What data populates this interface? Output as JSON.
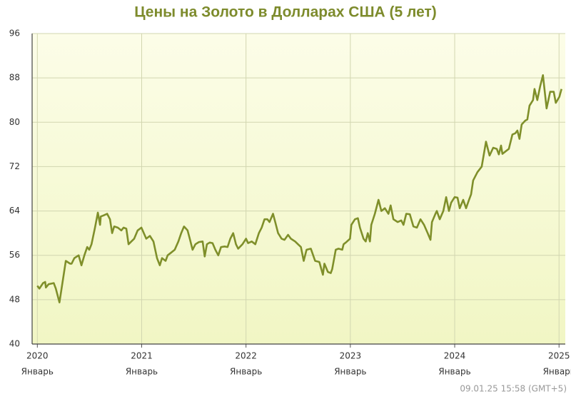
{
  "chart_data": {
    "type": "line",
    "title": "Цены на Золото в Долларах США (5 лет)",
    "footer": "09.01.25 15:58 (GMT+5)",
    "xtick_month": "Январь",
    "color": "#7f8f2a",
    "grid": true,
    "xlim": [
      2019.95,
      2025.06
    ],
    "xticks": [
      2020,
      2021,
      2022,
      2023,
      2024,
      2025
    ],
    "ylim": [
      40,
      96
    ],
    "yticks": [
      40,
      48,
      56,
      64,
      72,
      80,
      88,
      96
    ],
    "x": [
      2020.0,
      2020.02,
      2020.055,
      2020.075,
      2020.082,
      2020.109,
      2020.157,
      2020.177,
      2020.212,
      2020.273,
      2020.314,
      2020.328,
      2020.355,
      2020.396,
      2020.423,
      2020.451,
      2020.478,
      2020.498,
      2020.519,
      2020.553,
      2020.58,
      2020.601,
      2020.608,
      2020.635,
      2020.669,
      2020.696,
      2020.717,
      2020.737,
      2020.771,
      2020.805,
      2020.826,
      2020.853,
      2020.874,
      2020.901,
      2020.928,
      2020.962,
      2020.997,
      2021.044,
      2021.079,
      2021.113,
      2021.147,
      2021.174,
      2021.195,
      2021.229,
      2021.249,
      2021.283,
      2021.317,
      2021.352,
      2021.379,
      2021.406,
      2021.44,
      2021.461,
      2021.488,
      2021.515,
      2021.549,
      2021.584,
      2021.604,
      2021.625,
      2021.652,
      2021.679,
      2021.706,
      2021.734,
      2021.761,
      2021.795,
      2021.823,
      2021.85,
      2021.877,
      2021.904,
      2021.925,
      2021.966,
      2022.0,
      2022.02,
      2022.055,
      2022.089,
      2022.123,
      2022.15,
      2022.177,
      2022.205,
      2022.225,
      2022.259,
      2022.28,
      2022.307,
      2022.341,
      2022.369,
      2022.403,
      2022.43,
      2022.471,
      2022.498,
      2022.526,
      2022.553,
      2022.58,
      2022.621,
      2022.662,
      2022.703,
      2022.737,
      2022.751,
      2022.785,
      2022.812,
      2022.826,
      2022.86,
      2022.887,
      2022.922,
      2022.935,
      2022.962,
      2022.997,
      2023.01,
      2023.044,
      2023.072,
      2023.092,
      2023.126,
      2023.147,
      2023.167,
      2023.188,
      2023.201,
      2023.235,
      2023.27,
      2023.297,
      2023.331,
      2023.365,
      2023.386,
      2023.413,
      2023.454,
      2023.488,
      2023.509,
      2023.536,
      2023.57,
      2023.604,
      2023.638,
      2023.672,
      2023.706,
      2023.741,
      2023.768,
      2023.782,
      2023.816,
      2023.829,
      2023.857,
      2023.891,
      2023.918,
      2023.945,
      2023.966,
      2024.0,
      2024.027,
      2024.048,
      2024.082,
      2024.109,
      2024.137,
      2024.157,
      2024.177,
      2024.218,
      2024.259,
      2024.3,
      2024.334,
      2024.369,
      2024.403,
      2024.423,
      2024.444,
      2024.457,
      2024.491,
      2024.519,
      2024.553,
      2024.58,
      2024.601,
      2024.621,
      2024.642,
      2024.676,
      2024.696,
      2024.717,
      2024.751,
      2024.765,
      2024.792,
      2024.819,
      2024.846,
      2024.881,
      2024.915,
      2024.949,
      2024.969,
      2025.003,
      2025.024
    ],
    "values": [
      50.5,
      50,
      51,
      51.2,
      50.2,
      50.8,
      51,
      50,
      47.5,
      55,
      54.5,
      54.5,
      55.5,
      56,
      54.2,
      56,
      57.5,
      57,
      58,
      61,
      63.7,
      61.5,
      63,
      63.2,
      63.5,
      62.5,
      60,
      61.2,
      61,
      60.5,
      61,
      60.8,
      58,
      58.5,
      59,
      60.5,
      61,
      59,
      59.5,
      58.5,
      55.5,
      54.2,
      55.5,
      55,
      56,
      56.5,
      57,
      58.5,
      60,
      61.2,
      60.5,
      59,
      57,
      58,
      58.4,
      58.5,
      55.8,
      58,
      58.3,
      58.2,
      57,
      56,
      57.5,
      57.6,
      57.5,
      59,
      60,
      58,
      57.2,
      58,
      59,
      58.2,
      58.5,
      58,
      60,
      61,
      62.5,
      62.5,
      62,
      63.5,
      62,
      60,
      59,
      58.8,
      59.7,
      59,
      58.5,
      58,
      57.5,
      55,
      57,
      57.2,
      55,
      54.8,
      52.5,
      54.5,
      53,
      52.8,
      53.5,
      57,
      57.2,
      57,
      58,
      58.4,
      59,
      61.5,
      62.5,
      62.7,
      61,
      59,
      58.5,
      60,
      58.5,
      61.5,
      63.5,
      66,
      64,
      64.5,
      63.5,
      65,
      62.5,
      62,
      62.3,
      61.5,
      63.5,
      63.4,
      61.2,
      61,
      62.5,
      61.5,
      60,
      58.8,
      62,
      63.5,
      64,
      62.5,
      64,
      66.5,
      64,
      65.5,
      66.5,
      66.4,
      64.5,
      66,
      64.5,
      66,
      67,
      69.5,
      71,
      72,
      76.5,
      74,
      75.4,
      75.2,
      74.2,
      75.8,
      74.3,
      74.8,
      75.2,
      77.8,
      78,
      78.5,
      77,
      79.6,
      80.3,
      80.5,
      83,
      84,
      86,
      84,
      86.5,
      88.5,
      82.5,
      85.5,
      85.5,
      83.5,
      84.6,
      86
    ]
  }
}
